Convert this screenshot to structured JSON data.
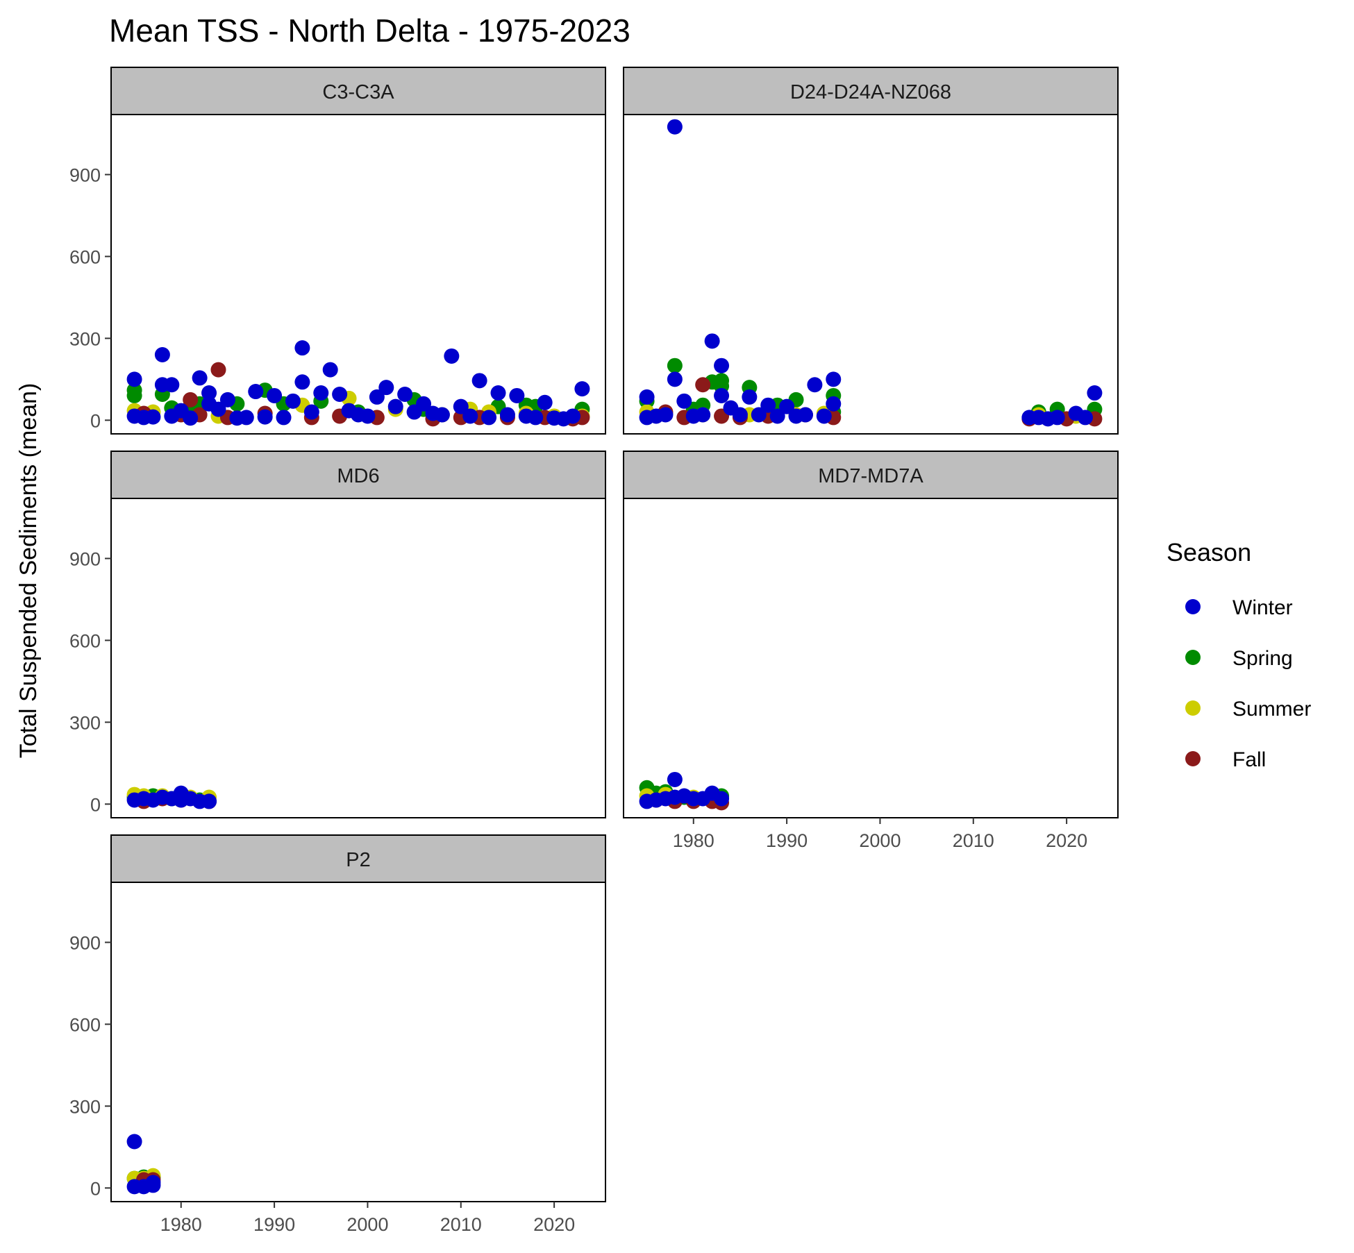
{
  "chart_data": {
    "type": "scatter",
    "title": "Mean TSS - North Delta - 1975-2023",
    "ylabel": "Total Suspended Sediments (mean)",
    "xlabel": "",
    "legend": {
      "title": "Season",
      "position": "right",
      "entries": [
        {
          "label": "Winter",
          "color": "#0000CD"
        },
        {
          "label": "Spring",
          "color": "#008B00"
        },
        {
          "label": "Summer",
          "color": "#CDCD00"
        },
        {
          "label": "Fall",
          "color": "#8B1A1A"
        }
      ]
    },
    "x_ticks": [
      1980,
      1990,
      2000,
      2010,
      2020
    ],
    "y_ticks": [
      0,
      300,
      600,
      900
    ],
    "xlim": [
      1972.5,
      2025.5
    ],
    "ylim": [
      -50,
      1120
    ],
    "grid": false,
    "panels": [
      {
        "name": "C3-C3A",
        "series": {
          "Winter": [
            [
              1975,
              150
            ],
            [
              1975,
              15
            ],
            [
              1976,
              10
            ],
            [
              1977,
              12
            ],
            [
              1978,
              240
            ],
            [
              1978,
              130
            ],
            [
              1979,
              130
            ],
            [
              1979,
              15
            ],
            [
              1980,
              35
            ],
            [
              1981,
              8
            ],
            [
              1982,
              155
            ],
            [
              1983,
              100
            ],
            [
              1983,
              60
            ],
            [
              1984,
              40
            ],
            [
              1985,
              75
            ],
            [
              1986,
              8
            ],
            [
              1987,
              10
            ],
            [
              1988,
              105
            ],
            [
              1989,
              12
            ],
            [
              1990,
              90
            ],
            [
              1991,
              10
            ],
            [
              1992,
              70
            ],
            [
              1993,
              265
            ],
            [
              1993,
              140
            ],
            [
              1994,
              30
            ],
            [
              1995,
              100
            ],
            [
              1996,
              185
            ],
            [
              1997,
              95
            ],
            [
              1998,
              35
            ],
            [
              1999,
              20
            ],
            [
              2000,
              15
            ],
            [
              2001,
              85
            ],
            [
              2002,
              120
            ],
            [
              2003,
              50
            ],
            [
              2004,
              95
            ],
            [
              2005,
              30
            ],
            [
              2006,
              60
            ],
            [
              2007,
              25
            ],
            [
              2008,
              20
            ],
            [
              2009,
              235
            ],
            [
              2010,
              50
            ],
            [
              2011,
              15
            ],
            [
              2012,
              145
            ],
            [
              2013,
              10
            ],
            [
              2014,
              100
            ],
            [
              2015,
              20
            ],
            [
              2016,
              90
            ],
            [
              2017,
              15
            ],
            [
              2018,
              10
            ],
            [
              2019,
              65
            ],
            [
              2020,
              8
            ],
            [
              2021,
              5
            ],
            [
              2022,
              15
            ],
            [
              2023,
              115
            ]
          ],
          "Spring": [
            [
              1975,
              110
            ],
            [
              1975,
              90
            ],
            [
              1978,
              95
            ],
            [
              1979,
              45
            ],
            [
              1981,
              50
            ],
            [
              1982,
              60
            ],
            [
              1986,
              60
            ],
            [
              1989,
              110
            ],
            [
              1991,
              60
            ],
            [
              1995,
              70
            ],
            [
              1999,
              30
            ],
            [
              2005,
              75
            ],
            [
              2006,
              40
            ],
            [
              2014,
              50
            ],
            [
              2017,
              55
            ],
            [
              2018,
              50
            ],
            [
              2023,
              40
            ]
          ],
          "Summer": [
            [
              1975,
              35
            ],
            [
              1977,
              30
            ],
            [
              1980,
              25
            ],
            [
              1984,
              15
            ],
            [
              1993,
              55
            ],
            [
              1998,
              80
            ],
            [
              2003,
              40
            ],
            [
              2008,
              20
            ],
            [
              2011,
              40
            ],
            [
              2013,
              30
            ],
            [
              2017,
              25
            ],
            [
              2020,
              15
            ],
            [
              2023,
              15
            ]
          ],
          "Fall": [
            [
              1976,
              25
            ],
            [
              1980,
              20
            ],
            [
              1981,
              75
            ],
            [
              1982,
              20
            ],
            [
              1984,
              185
            ],
            [
              1985,
              10
            ],
            [
              1989,
              25
            ],
            [
              1994,
              10
            ],
            [
              1997,
              15
            ],
            [
              2001,
              10
            ],
            [
              2007,
              5
            ],
            [
              2010,
              10
            ],
            [
              2012,
              10
            ],
            [
              2015,
              10
            ],
            [
              2019,
              10
            ],
            [
              2022,
              5
            ],
            [
              2023,
              10
            ]
          ]
        }
      },
      {
        "name": "D24-D24A-NZ068",
        "series": {
          "Winter": [
            [
              1975,
              85
            ],
            [
              1975,
              10
            ],
            [
              1976,
              15
            ],
            [
              1977,
              20
            ],
            [
              1978,
              1075
            ],
            [
              1978,
              150
            ],
            [
              1979,
              70
            ],
            [
              1980,
              15
            ],
            [
              1981,
              20
            ],
            [
              1982,
              290
            ],
            [
              1983,
              200
            ],
            [
              1983,
              90
            ],
            [
              1984,
              45
            ],
            [
              1985,
              20
            ],
            [
              1986,
              85
            ],
            [
              1987,
              20
            ],
            [
              1988,
              55
            ],
            [
              1989,
              15
            ],
            [
              1990,
              50
            ],
            [
              1991,
              15
            ],
            [
              1992,
              20
            ],
            [
              1993,
              130
            ],
            [
              1994,
              15
            ],
            [
              1995,
              150
            ],
            [
              1995,
              60
            ],
            [
              2016,
              10
            ],
            [
              2017,
              10
            ],
            [
              2018,
              5
            ],
            [
              2019,
              10
            ],
            [
              2021,
              25
            ],
            [
              2022,
              10
            ],
            [
              2023,
              100
            ]
          ],
          "Spring": [
            [
              1975,
              70
            ],
            [
              1978,
              200
            ],
            [
              1980,
              40
            ],
            [
              1981,
              55
            ],
            [
              1982,
              140
            ],
            [
              1983,
              145
            ],
            [
              1983,
              125
            ],
            [
              1986,
              120
            ],
            [
              1989,
              55
            ],
            [
              1991,
              75
            ],
            [
              1995,
              90
            ],
            [
              1995,
              30
            ],
            [
              2017,
              30
            ],
            [
              2019,
              40
            ],
            [
              2023,
              40
            ]
          ],
          "Summer": [
            [
              1975,
              30
            ],
            [
              1977,
              25
            ],
            [
              1981,
              20
            ],
            [
              1986,
              20
            ],
            [
              1991,
              20
            ],
            [
              1994,
              25
            ],
            [
              2017,
              20
            ],
            [
              2021,
              15
            ]
          ],
          "Fall": [
            [
              1977,
              30
            ],
            [
              1979,
              10
            ],
            [
              1981,
              130
            ],
            [
              1983,
              15
            ],
            [
              1985,
              10
            ],
            [
              1988,
              15
            ],
            [
              1992,
              20
            ],
            [
              1995,
              10
            ],
            [
              2016,
              5
            ],
            [
              2020,
              5
            ],
            [
              2023,
              5
            ]
          ]
        }
      },
      {
        "name": "MD6",
        "series": {
          "Winter": [
            [
              1975,
              15
            ],
            [
              1976,
              20
            ],
            [
              1977,
              15
            ],
            [
              1978,
              25
            ],
            [
              1979,
              20
            ],
            [
              1980,
              40
            ],
            [
              1980,
              15
            ],
            [
              1981,
              20
            ],
            [
              1982,
              10
            ],
            [
              1983,
              10
            ]
          ],
          "Spring": [
            [
              1975,
              25
            ],
            [
              1977,
              30
            ],
            [
              1979,
              20
            ],
            [
              1982,
              15
            ]
          ],
          "Summer": [
            [
              1975,
              35
            ],
            [
              1976,
              30
            ],
            [
              1978,
              30
            ],
            [
              1981,
              25
            ],
            [
              1983,
              25
            ]
          ],
          "Fall": [
            [
              1976,
              10
            ],
            [
              1978,
              20
            ],
            [
              1980,
              15
            ],
            [
              1983,
              10
            ]
          ]
        }
      },
      {
        "name": "MD7-MD7A",
        "series": {
          "Winter": [
            [
              1975,
              10
            ],
            [
              1976,
              15
            ],
            [
              1977,
              20
            ],
            [
              1978,
              90
            ],
            [
              1978,
              25
            ],
            [
              1979,
              30
            ],
            [
              1980,
              20
            ],
            [
              1981,
              20
            ],
            [
              1982,
              40
            ],
            [
              1983,
              20
            ]
          ],
          "Spring": [
            [
              1975,
              60
            ],
            [
              1976,
              40
            ],
            [
              1977,
              45
            ],
            [
              1979,
              25
            ],
            [
              1983,
              30
            ]
          ],
          "Summer": [
            [
              1975,
              30
            ],
            [
              1977,
              35
            ],
            [
              1980,
              25
            ],
            [
              1982,
              20
            ]
          ],
          "Fall": [
            [
              1976,
              15
            ],
            [
              1978,
              10
            ],
            [
              1980,
              10
            ],
            [
              1982,
              10
            ],
            [
              1983,
              5
            ]
          ]
        }
      },
      {
        "name": "P2",
        "series": {
          "Winter": [
            [
              1975,
              170
            ],
            [
              1975,
              5
            ],
            [
              1976,
              5
            ],
            [
              1977,
              10
            ],
            [
              1977,
              20
            ]
          ],
          "Spring": [
            [
              1975,
              35
            ],
            [
              1976,
              40
            ],
            [
              1977,
              40
            ]
          ],
          "Summer": [
            [
              1975,
              35
            ],
            [
              1976,
              35
            ],
            [
              1977,
              45
            ]
          ],
          "Fall": [
            [
              1976,
              30
            ],
            [
              1977,
              30
            ]
          ]
        }
      }
    ]
  }
}
